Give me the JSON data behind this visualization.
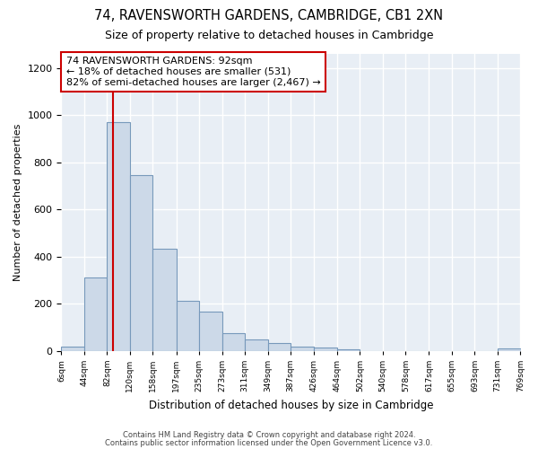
{
  "title": "74, RAVENSWORTH GARDENS, CAMBRIDGE, CB1 2XN",
  "subtitle": "Size of property relative to detached houses in Cambridge",
  "xlabel": "Distribution of detached houses by size in Cambridge",
  "ylabel": "Number of detached properties",
  "bar_color": "#ccd9e8",
  "bar_edge_color": "#7799bb",
  "plot_bg_color": "#e8eef5",
  "fig_bg_color": "#ffffff",
  "bin_edges": [
    6,
    44,
    82,
    120,
    158,
    197,
    235,
    273,
    311,
    349,
    387,
    426,
    464,
    502,
    540,
    578,
    617,
    655,
    693,
    731,
    769
  ],
  "bin_labels": [
    "6sqm",
    "44sqm",
    "82sqm",
    "120sqm",
    "158sqm",
    "197sqm",
    "235sqm",
    "273sqm",
    "311sqm",
    "349sqm",
    "387sqm",
    "426sqm",
    "464sqm",
    "502sqm",
    "540sqm",
    "578sqm",
    "617sqm",
    "655sqm",
    "693sqm",
    "731sqm",
    "769sqm"
  ],
  "bar_heights": [
    20,
    310,
    970,
    745,
    435,
    212,
    165,
    75,
    48,
    35,
    17,
    14,
    8,
    0,
    0,
    0,
    0,
    0,
    0,
    10
  ],
  "vline_x": 92,
  "vline_color": "#cc0000",
  "annotation_text_line1": "74 RAVENSWORTH GARDENS: 92sqm",
  "annotation_text_line2": "← 18% of detached houses are smaller (531)",
  "annotation_text_line3": "82% of semi-detached houses are larger (2,467) →",
  "annotation_box_color": "#ffffff",
  "annotation_box_edge": "#cc0000",
  "ylim": [
    0,
    1260
  ],
  "yticks": [
    0,
    200,
    400,
    600,
    800,
    1000,
    1200
  ],
  "footer_line1": "Contains HM Land Registry data © Crown copyright and database right 2024.",
  "footer_line2": "Contains public sector information licensed under the Open Government Licence v3.0."
}
